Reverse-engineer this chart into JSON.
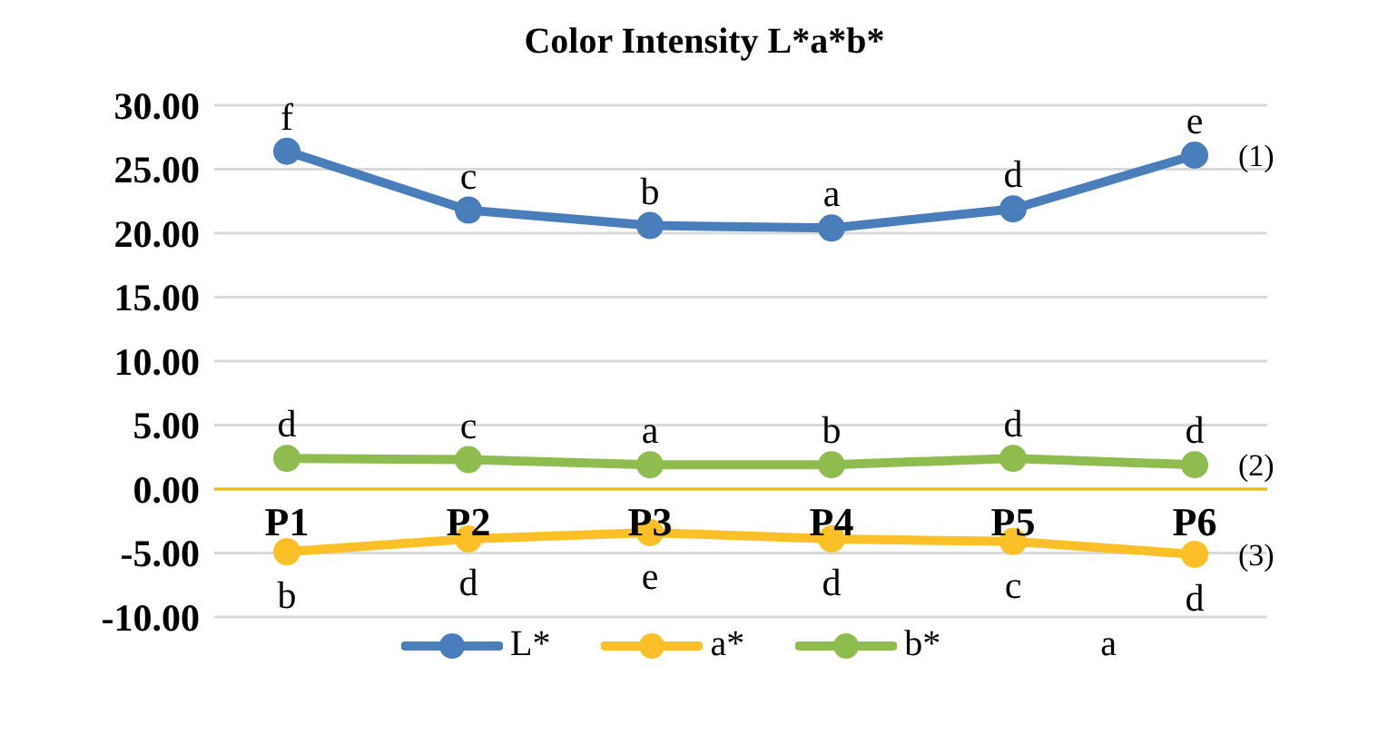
{
  "chart_data": {
    "type": "line",
    "title": "Color Intensity L*a*b*",
    "categories": [
      "P1",
      "P2",
      "P3",
      "P4",
      "P5",
      "P6"
    ],
    "series": [
      {
        "name": "L*",
        "color": "#4a7ebb",
        "values": [
          26.4,
          21.8,
          20.6,
          20.4,
          21.9,
          26.1
        ]
      },
      {
        "name": "a*",
        "color": "#fbbf28",
        "values": [
          -4.9,
          -3.9,
          -3.4,
          -3.9,
          -4.1,
          -5.1
        ]
      },
      {
        "name": "b*",
        "color": "#8fbc4f",
        "values": [
          2.4,
          2.3,
          1.9,
          1.9,
          2.4,
          1.9
        ]
      }
    ],
    "ylim": [
      -10,
      30
    ],
    "yticks": [
      {
        "value": -10,
        "label": "-10.00"
      },
      {
        "value": -5,
        "label": "-5.00"
      },
      {
        "value": 0,
        "label": "0.00"
      },
      {
        "value": 5,
        "label": "5.00"
      },
      {
        "value": 10,
        "label": "10.00"
      },
      {
        "value": 15,
        "label": "15.00"
      },
      {
        "value": 20,
        "label": "20.00"
      },
      {
        "value": 25,
        "label": "25.00"
      },
      {
        "value": 30,
        "label": "30.00"
      }
    ],
    "grid": "y",
    "legend": "bottom",
    "marker": "circle",
    "line_style": "solid",
    "annotations": [
      {
        "text": "f",
        "x": "P1",
        "y": 26.4
      },
      {
        "text": "c",
        "x": "P2",
        "y": 21.8
      },
      {
        "text": "b",
        "x": "P3",
        "y": 20.6
      },
      {
        "text": "a",
        "x": "P4",
        "y": 20.4
      },
      {
        "text": "d",
        "x": "P5",
        "y": 21.9
      },
      {
        "text": "e",
        "x": "P6",
        "y": 26.1
      },
      {
        "text": "(1)",
        "x": "P6",
        "y": 26.1
      },
      {
        "text": "d",
        "x": "P1",
        "y": 2.4
      },
      {
        "text": "c",
        "x": "P2",
        "y": 2.3
      },
      {
        "text": "a",
        "x": "P3",
        "y": 1.9
      },
      {
        "text": "b",
        "x": "P4",
        "y": 1.9
      },
      {
        "text": "d",
        "x": "P5",
        "y": 2.4
      },
      {
        "text": "d",
        "x": "P6",
        "y": 1.9
      },
      {
        "text": "(2)",
        "x": "P6",
        "y": 1.9
      },
      {
        "text": "b",
        "x": "P1",
        "y": -4.9
      },
      {
        "text": "d",
        "x": "P2",
        "y": -3.9
      },
      {
        "text": "e",
        "x": "P3",
        "y": -3.4
      },
      {
        "text": "d",
        "x": "P4",
        "y": -3.9
      },
      {
        "text": "c",
        "x": "P5",
        "y": -4.1
      },
      {
        "text": "d",
        "x": "P6",
        "y": -5.1
      },
      {
        "text": "(3)",
        "x": "P6",
        "y": -5.1
      },
      "a"
    ]
  }
}
